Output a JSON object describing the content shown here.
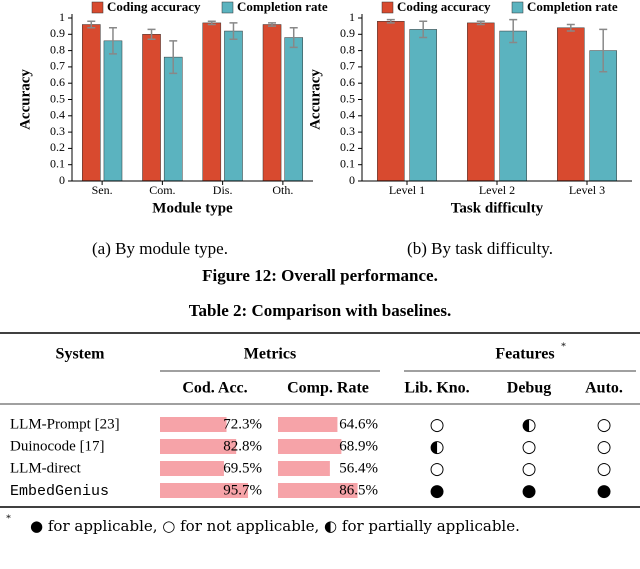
{
  "chart_data": [
    {
      "type": "bar",
      "categories": [
        "Sen.",
        "Com.",
        "Dis.",
        "Oth."
      ],
      "series": [
        {
          "name": "Coding accuracy",
          "color": "#d84a2f",
          "values": [
            0.96,
            0.9,
            0.97,
            0.96
          ],
          "errors": [
            0.02,
            0.03,
            0.01,
            0.01
          ]
        },
        {
          "name": "Completion rate",
          "color": "#5bb3bf",
          "values": [
            0.86,
            0.76,
            0.92,
            0.88
          ],
          "errors": [
            0.08,
            0.1,
            0.05,
            0.06
          ]
        }
      ],
      "ylim": [
        0,
        1
      ],
      "yticks": [
        0,
        0.1,
        0.2,
        0.3,
        0.4,
        0.5,
        0.6,
        0.7,
        0.8,
        0.9,
        1
      ],
      "ylabel": "Accuracy",
      "xlabel": "Module type",
      "caption": "(a)  By module type."
    },
    {
      "type": "bar",
      "categories": [
        "Level 1",
        "Level 2",
        "Level 3"
      ],
      "series": [
        {
          "name": "Coding accuracy",
          "color": "#d84a2f",
          "values": [
            0.98,
            0.97,
            0.94
          ],
          "errors": [
            0.01,
            0.01,
            0.02
          ]
        },
        {
          "name": "Completion rate",
          "color": "#5bb3bf",
          "values": [
            0.93,
            0.92,
            0.8
          ],
          "errors": [
            0.05,
            0.07,
            0.13
          ]
        }
      ],
      "ylim": [
        0,
        1
      ],
      "yticks": [
        0,
        0.1,
        0.2,
        0.3,
        0.4,
        0.5,
        0.6,
        0.7,
        0.8,
        0.9,
        1
      ],
      "ylabel": "Accuracy",
      "xlabel": "Task difficulty",
      "caption": "(b)  By task difficulty."
    }
  ],
  "figure_caption": "Figure 12: Overall performance.",
  "table": {
    "title": "Table 2: Comparison with baselines.",
    "header": {
      "system": "System",
      "metrics": "Metrics",
      "features": "Features",
      "features_mark": "*",
      "columns": [
        "Cod. Acc.",
        "Comp. Rate",
        "Lib. Kno.",
        "Debug",
        "Auto."
      ]
    },
    "rows": [
      {
        "system": "LLM-Prompt [23]",
        "cod_acc": 72.3,
        "cod_acc_label": "72.3%",
        "comp_rate": 64.6,
        "comp_rate_label": "64.6%",
        "features": [
          "○",
          "◐",
          "○"
        ]
      },
      {
        "system": "Duinocode [17]",
        "cod_acc": 82.8,
        "cod_acc_label": "82.8%",
        "comp_rate": 68.9,
        "comp_rate_label": "68.9%",
        "features": [
          "◐",
          "○",
          "○"
        ]
      },
      {
        "system": "LLM-direct",
        "cod_acc": 69.5,
        "cod_acc_label": "69.5%",
        "comp_rate": 56.4,
        "comp_rate_label": "56.4%",
        "features": [
          "○",
          "○",
          "○"
        ]
      },
      {
        "system": "EmbedGenius",
        "cod_acc": 95.7,
        "cod_acc_label": "95.7%",
        "comp_rate": 86.5,
        "comp_rate_label": "86.5%",
        "features": [
          "●",
          "●",
          "●"
        ]
      }
    ],
    "bar_color": "#f6a3a8",
    "footnote": {
      "mark": "*",
      "text": "● for applicable, ○ for not applicable, ◐ for partially applicable."
    }
  }
}
